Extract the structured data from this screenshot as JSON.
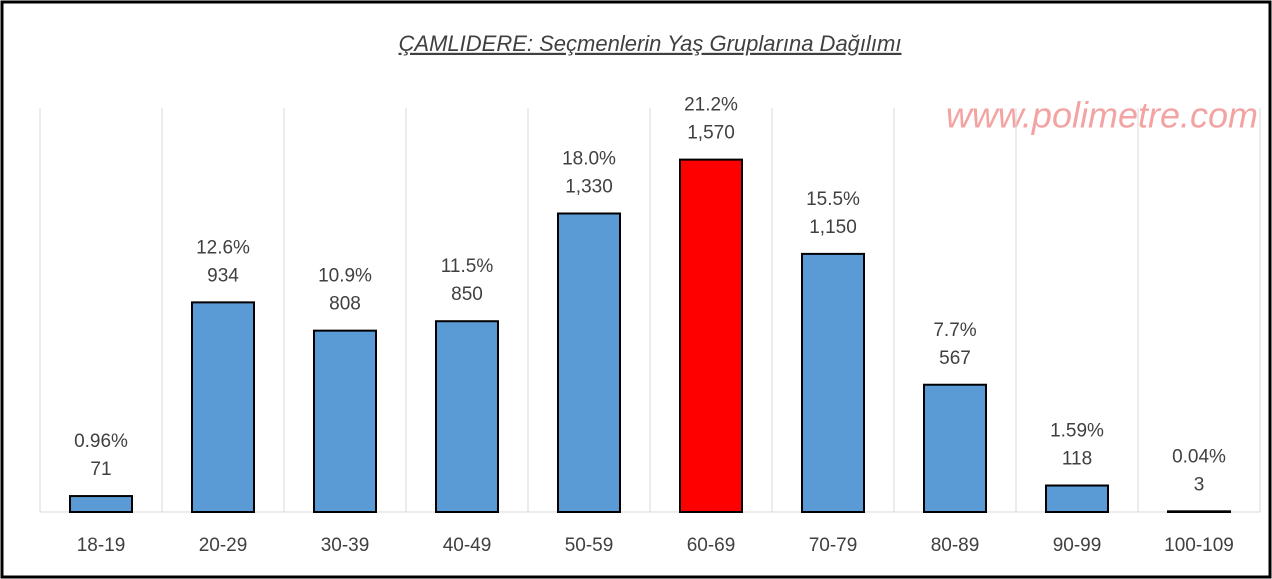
{
  "chart_data": {
    "type": "bar",
    "title": "ÇAMLIDERE: Seçmenlerin Yaş Gruplarına Dağılımı",
    "watermark": "www.polimetre.com",
    "categories": [
      "18-19",
      "20-29",
      "30-39",
      "40-49",
      "50-59",
      "60-69",
      "70-79",
      "80-89",
      "90-99",
      "100-109"
    ],
    "values": [
      71,
      934,
      808,
      850,
      1330,
      1570,
      1150,
      567,
      118,
      3
    ],
    "value_labels": [
      "71",
      "934",
      "808",
      "850",
      "1,330",
      "1,570",
      "1,150",
      "567",
      "118",
      "3"
    ],
    "percent_labels": [
      "0.96%",
      "12.6%",
      "10.9%",
      "11.5%",
      "18.0%",
      "21.2%",
      "15.5%",
      "7.7%",
      "1.59%",
      "0.04%"
    ],
    "colors": [
      "#5b9bd5",
      "#5b9bd5",
      "#5b9bd5",
      "#5b9bd5",
      "#5b9bd5",
      "#ff0000",
      "#5b9bd5",
      "#5b9bd5",
      "#5b9bd5",
      "#5b9bd5"
    ],
    "ylim": [
      0,
      1800
    ],
    "grid": true
  }
}
